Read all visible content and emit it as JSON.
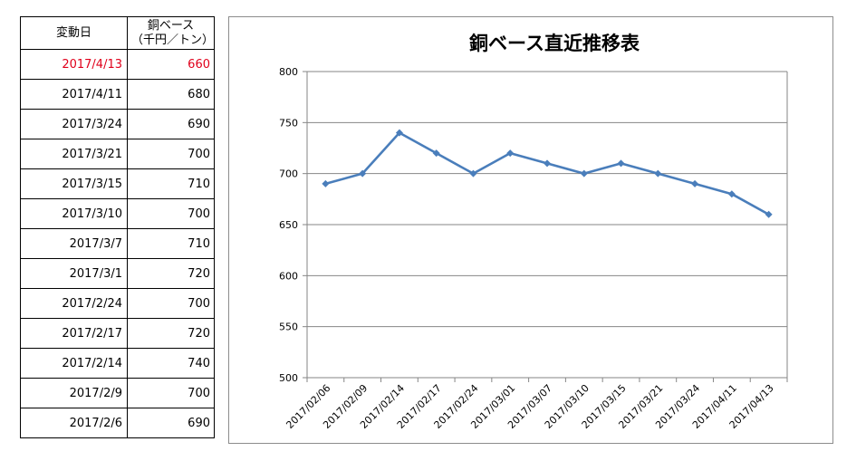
{
  "table": {
    "header": {
      "date": "変動日",
      "price_line1": "銅ベース",
      "price_line2": "（千円／トン）"
    },
    "rows": [
      {
        "date": "2017/4/13",
        "price": "660"
      },
      {
        "date": "2017/4/11",
        "price": "680"
      },
      {
        "date": "2017/3/24",
        "price": "690"
      },
      {
        "date": "2017/3/21",
        "price": "700"
      },
      {
        "date": "2017/3/15",
        "price": "710"
      },
      {
        "date": "2017/3/10",
        "price": "700"
      },
      {
        "date": "2017/3/7",
        "price": "710"
      },
      {
        "date": "2017/3/1",
        "price": "720"
      },
      {
        "date": "2017/2/24",
        "price": "700"
      },
      {
        "date": "2017/2/17",
        "price": "720"
      },
      {
        "date": "2017/2/14",
        "price": "740"
      },
      {
        "date": "2017/2/9",
        "price": "700"
      },
      {
        "date": "2017/2/6",
        "price": "690"
      }
    ],
    "highlight_color": "#e0001b"
  },
  "chart_data": {
    "type": "line",
    "title": "銅ベース直近推移表",
    "xlabel": "",
    "ylabel": "",
    "categories": [
      "2017/02/06",
      "2017/02/09",
      "2017/02/14",
      "2017/02/17",
      "2017/02/24",
      "2017/03/01",
      "2017/03/07",
      "2017/03/10",
      "2017/03/15",
      "2017/03/21",
      "2017/03/24",
      "2017/04/11",
      "2017/04/13"
    ],
    "series": [
      {
        "values": [
          690,
          700,
          740,
          720,
          700,
          720,
          710,
          700,
          710,
          700,
          690,
          680,
          660
        ]
      }
    ],
    "ylim": [
      500,
      800
    ],
    "yticks": [
      500,
      550,
      600,
      650,
      700,
      750,
      800
    ],
    "grid": true,
    "legend": "none",
    "line_color": "#4a7ebb",
    "marker": "diamond",
    "gridline_color": "#868686"
  }
}
